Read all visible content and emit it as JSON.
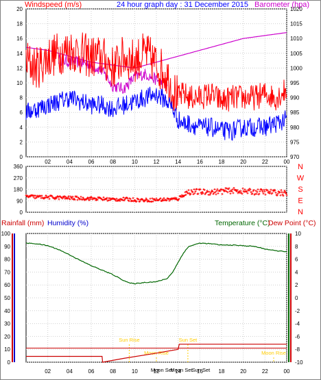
{
  "header": {
    "windspeed_label": "Windspeed (m/s)",
    "title": "24 hour graph day : 31 December 2015",
    "barometer_label": "Barometer (hpa)"
  },
  "lower_header": {
    "rainfall_label": "Rainfall (mm)",
    "humidity_label": "Humidity (%)",
    "temperature_label": "Temperature (°C)",
    "dewpoint_label": "Dew Point (°C)"
  },
  "colors": {
    "wind_gust": "#ff0000",
    "wind_avg": "#0000ff",
    "barometer": "#cc00cc",
    "direction": "#ff0000",
    "rain": "#cc0000",
    "humidity": "#0000cc",
    "temperature": "#006600",
    "dewpoint": "#cc0000",
    "events": "#ffcc00"
  },
  "chart_data": [
    {
      "type": "line",
      "title": "24 hour graph day : 31 December 2015",
      "x_ticks": [
        "02",
        "04",
        "06",
        "08",
        "10",
        "12",
        "14",
        "16",
        "18",
        "20",
        "22",
        "00"
      ],
      "xlim": [
        0,
        24
      ],
      "y_left": {
        "label": "Windspeed (m/s)",
        "ylim": [
          0,
          20
        ],
        "ticks": [
          0,
          2,
          4,
          6,
          8,
          10,
          12,
          14,
          16,
          18,
          20
        ]
      },
      "y_right": {
        "label": "Barometer (hpa)",
        "ylim": [
          970,
          1020
        ],
        "ticks": [
          970,
          975,
          980,
          985,
          990,
          995,
          1000,
          1005,
          1010,
          1015,
          1020
        ]
      },
      "series": [
        {
          "name": "Windspeed (m/s)",
          "role": "gust",
          "axis": "left",
          "x": [
            0,
            1,
            2,
            3,
            4,
            5,
            6,
            7,
            8,
            9,
            10,
            11,
            12,
            13,
            13.5,
            14,
            14.5,
            15,
            16,
            17,
            18,
            19,
            20,
            21,
            22,
            23,
            23.9
          ],
          "y": [
            13,
            12,
            13.5,
            14,
            14.5,
            14,
            13.5,
            13.5,
            12,
            13.5,
            13,
            14,
            12.5,
            11,
            9,
            8,
            8.5,
            8,
            8,
            8.5,
            7.5,
            8,
            8,
            8,
            8.5,
            8,
            9
          ]
        },
        {
          "name": "Windspeed (m/s)",
          "role": "average",
          "axis": "left",
          "x": [
            0,
            1,
            2,
            3,
            4,
            5,
            6,
            7,
            8,
            9,
            10,
            11,
            12,
            13,
            13.5,
            14,
            14.5,
            15,
            16,
            17,
            18,
            19,
            20,
            21,
            22,
            23,
            23.9
          ],
          "y": [
            6,
            6.5,
            7,
            7.5,
            8,
            7.5,
            7,
            7,
            6.5,
            7,
            7.5,
            8,
            8.5,
            7.5,
            6.5,
            5,
            4.5,
            4.5,
            4,
            4,
            3.5,
            3.5,
            4,
            4,
            4,
            4.5,
            5
          ]
        },
        {
          "name": "Barometer (hpa)",
          "axis": "right",
          "x": [
            0,
            2,
            4,
            6,
            8,
            10,
            12,
            14,
            16,
            18,
            20,
            22,
            24
          ],
          "y": [
            1007,
            1006,
            1004,
            1002,
            1001,
            1000,
            1002,
            1004,
            1006,
            1008,
            1010,
            1011,
            1012
          ]
        },
        {
          "name": "Barometer (hpa)",
          "role": "fluctuation",
          "axis": "right",
          "x": [
            3,
            4,
            5,
            6,
            7,
            8,
            9,
            10,
            11,
            12,
            13
          ],
          "y": [
            1003,
            1002,
            1002,
            1001,
            999,
            994,
            993,
            997,
            998,
            996,
            994
          ]
        }
      ]
    },
    {
      "type": "scatter",
      "title": "",
      "x_ticks": [
        "02",
        "04",
        "06",
        "08",
        "10",
        "12",
        "14",
        "16",
        "18",
        "20",
        "22",
        "00"
      ],
      "xlim": [
        0,
        24
      ],
      "ylim": [
        0,
        360
      ],
      "y_ticks": [
        0,
        90,
        180,
        270,
        360
      ],
      "right_labels": [
        "N",
        "W",
        "S",
        "E",
        "N"
      ],
      "series": [
        {
          "name": "Wind direction",
          "x": [
            0,
            1,
            2,
            3,
            4,
            5,
            6,
            7,
            8,
            9,
            10,
            11,
            12,
            13,
            14,
            14.5,
            15,
            16,
            17,
            18,
            19,
            20,
            21,
            22,
            23,
            23.9
          ],
          "y": [
            125,
            120,
            118,
            115,
            112,
            110,
            108,
            105,
            100,
            102,
            98,
            95,
            98,
            100,
            105,
            140,
            160,
            160,
            158,
            165,
            170,
            165,
            160,
            160,
            155,
            150
          ]
        }
      ]
    },
    {
      "type": "line",
      "title": "",
      "x_ticks": [
        "02",
        "04",
        "06",
        "08",
        "10",
        "12",
        "14",
        "16",
        "18",
        "20",
        "22",
        "00"
      ],
      "xlim": [
        0,
        24
      ],
      "y_left": {
        "label": "Humidity (%)",
        "ylim": [
          0,
          100
        ],
        "ticks": [
          0,
          10,
          20,
          30,
          40,
          50,
          60,
          70,
          80,
          90,
          100
        ]
      },
      "y_right": {
        "label": "Temperature (°C)",
        "ylim": [
          -10,
          10
        ],
        "ticks": [
          -10,
          -8,
          -6,
          -4,
          -2,
          0,
          2,
          4,
          6,
          8,
          10
        ]
      },
      "annotations": [
        "Sun Rise",
        "Sun Set",
        "Moon Rise",
        "Moon Set",
        "Moon Set",
        "Sun Rise",
        "Sun Set",
        "Moon Rise"
      ],
      "series": [
        {
          "name": "Temperature (°C)",
          "axis": "right",
          "x": [
            0,
            1,
            2,
            3,
            4,
            5,
            6,
            7,
            8,
            9,
            9.5,
            10,
            11,
            12,
            13,
            13.5,
            14,
            14.5,
            15,
            16,
            17,
            18,
            19,
            20,
            21,
            22,
            23,
            24
          ],
          "y": [
            8.5,
            8.4,
            8.1,
            7.5,
            6.7,
            5.8,
            5,
            4.3,
            3.6,
            2.7,
            2.3,
            2.2,
            2.4,
            2.5,
            3,
            4,
            5.5,
            7,
            8,
            8.5,
            8.4,
            8.2,
            8.2,
            8.1,
            8,
            7.6,
            7.3,
            7.2
          ]
        },
        {
          "name": "Rainfall (mm)",
          "axis": "left",
          "x": [
            0,
            7,
            7.05,
            9,
            12,
            14,
            14.1,
            24
          ],
          "y": [
            4.5,
            4.5,
            0,
            3,
            7,
            10,
            14,
            14
          ]
        },
        {
          "name": "Rainfall",
          "role": "rate",
          "axis": "left",
          "x": [
            0,
            24
          ],
          "y": [
            11,
            11
          ]
        }
      ]
    }
  ]
}
